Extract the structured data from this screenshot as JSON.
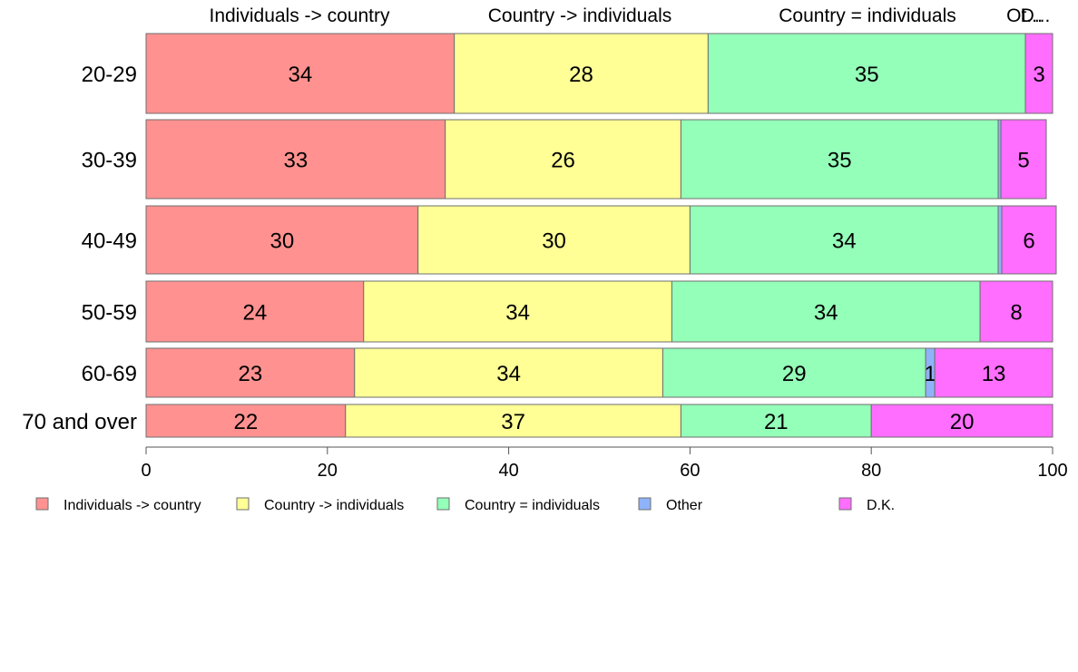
{
  "chart_data": {
    "type": "bar",
    "orientation": "horizontal",
    "stacked": true,
    "categories": [
      "20-29",
      "30-39",
      "40-49",
      "50-59",
      "60-69",
      "70 and over"
    ],
    "series": [
      {
        "name": "Individuals -> country",
        "color": "#ff9290",
        "values": [
          34,
          33,
          30,
          24,
          23,
          22
        ]
      },
      {
        "name": "Country -> individuals",
        "color": "#ffff96",
        "values": [
          28,
          26,
          30,
          34,
          34,
          37
        ]
      },
      {
        "name": "Country = individuals",
        "color": "#94ffb9",
        "values": [
          35,
          35,
          34,
          34,
          29,
          21
        ]
      },
      {
        "name": "Other",
        "color": "#8fb3fa",
        "values": [
          0,
          0.3,
          0.4,
          0,
          1,
          0
        ]
      },
      {
        "name": "D.K.",
        "color": "#ff6eff",
        "values": [
          3,
          5,
          6,
          8,
          13,
          20
        ]
      }
    ],
    "data_labels": [
      [
        "34",
        "28",
        "35",
        "",
        "3"
      ],
      [
        "33",
        "26",
        "35",
        "",
        "5"
      ],
      [
        "30",
        "30",
        "34",
        "",
        "6"
      ],
      [
        "24",
        "34",
        "34",
        "",
        "8"
      ],
      [
        "23",
        "34",
        "29",
        "1",
        "13"
      ],
      [
        "22",
        "37",
        "21",
        "",
        "20"
      ]
    ],
    "top_labels": [
      "Individuals -> country",
      "Country -> individuals",
      "Country = individuals",
      "Ot...",
      "D..."
    ],
    "xticks": [
      "0",
      "20",
      "40",
      "60",
      "80",
      "100"
    ],
    "xlim": [
      0,
      100
    ],
    "grid": false,
    "legend_position": "bottom",
    "title": "",
    "xlabel": "",
    "ylabel": ""
  }
}
